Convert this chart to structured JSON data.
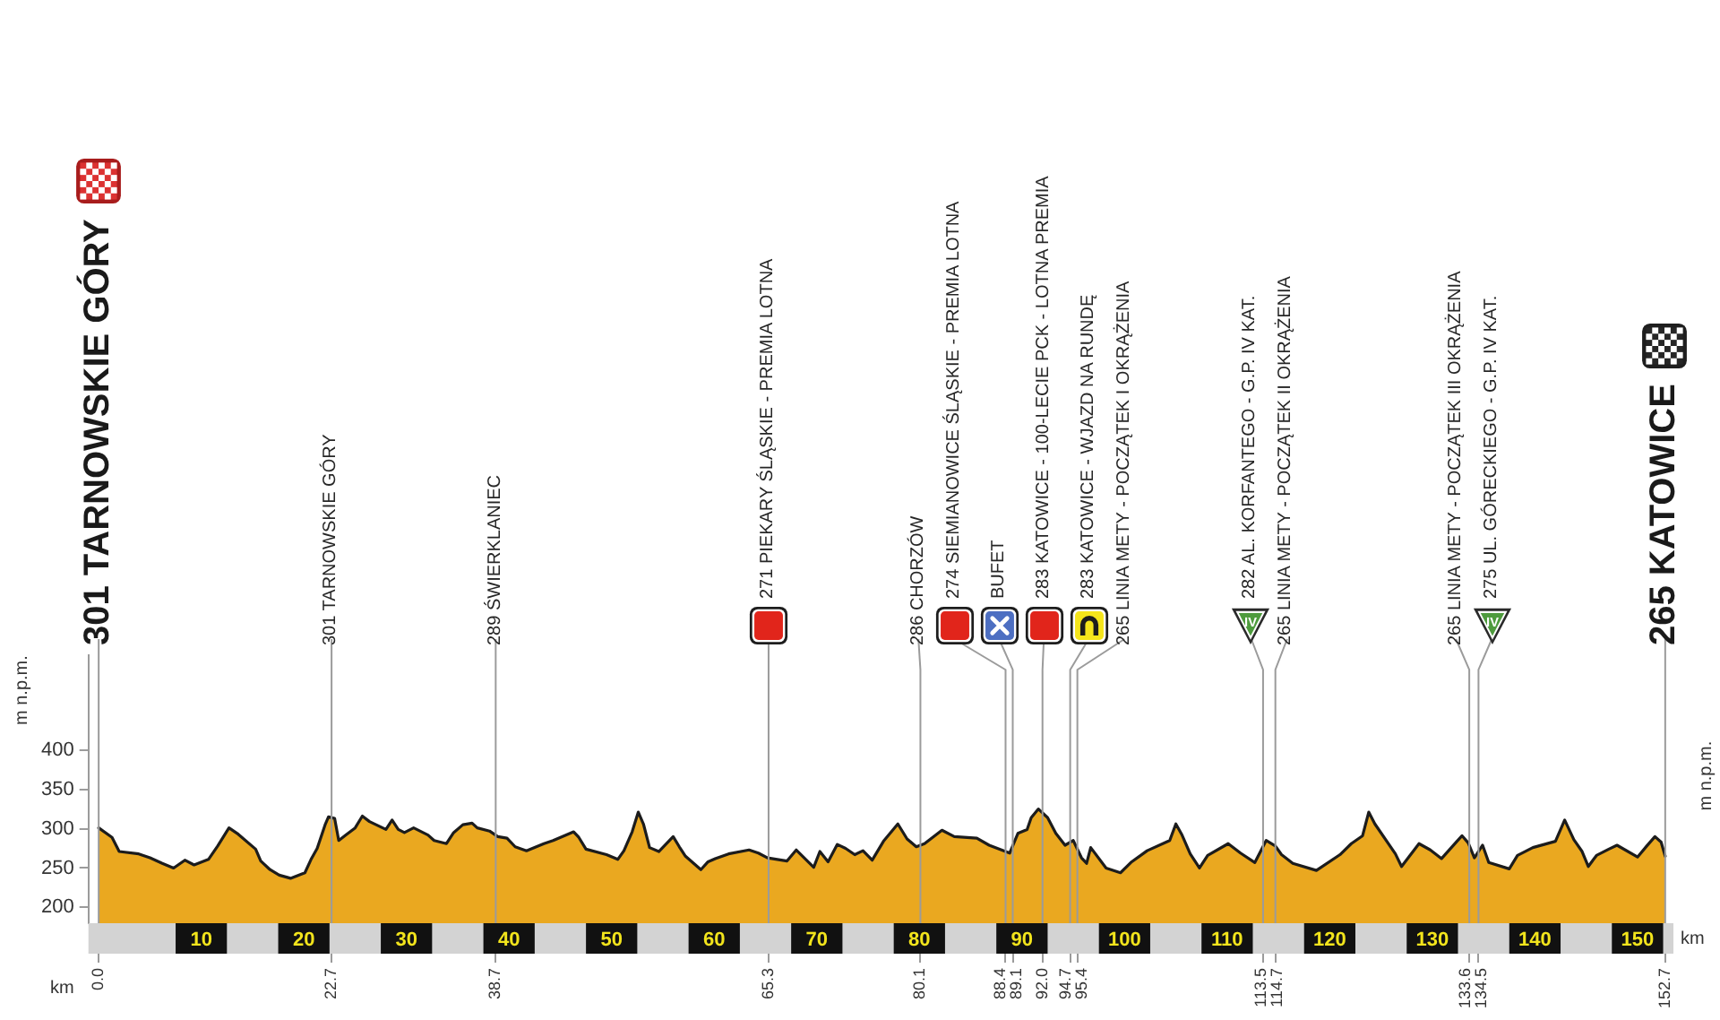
{
  "chart_data": {
    "type": "area",
    "xlabel": "km",
    "ylabel": "m n.p.m.",
    "x2label": "km",
    "annotations": [
      "m n.p.m.",
      "IV",
      "IV"
    ],
    "x": [
      0,
      1.3,
      2.0,
      3.9,
      5.0,
      6.2,
      7.3,
      8.4,
      9.3,
      10.7,
      11.6,
      12.7,
      13.6,
      15.3,
      15.8,
      16.7,
      17.6,
      18.7,
      20.1,
      20.7,
      21.3,
      22.1,
      22.4,
      23.0,
      23.4,
      24.1,
      25.0,
      25.7,
      26.4,
      28.0,
      28.6,
      29.2,
      29.8,
      30.7,
      32.1,
      32.7,
      33.9,
      34.6,
      35.5,
      36.4,
      36.9,
      38.1,
      38.9,
      39.8,
      40.6,
      41.7,
      43.4,
      44.3,
      46.3,
      46.8,
      47.5,
      49.5,
      50.6,
      51.2,
      52.0,
      52.6,
      53.1,
      53.7,
      54.6,
      56.0,
      56.6,
      57.2,
      58.7,
      59.4,
      60.1,
      61.4,
      63.4,
      64.3,
      65.2,
      67.1,
      68.0,
      69.7,
      70.3,
      71.1,
      72.0,
      72.8,
      73.7,
      74.5,
      75.4,
      76.5,
      77.9,
      78.8,
      79.7,
      80.5,
      82.2,
      83.4,
      85.6,
      86.8,
      88.8,
      89.6,
      90.5,
      90.9,
      91.6,
      92.5,
      93.3,
      94.2,
      95.0,
      95.8,
      96.3,
      96.7,
      98.2,
      99.6,
      100.7,
      102.2,
      104.4,
      105.0,
      105.6,
      106.4,
      107.3,
      108.1,
      110.1,
      111.3,
      112.7,
      113.8,
      114.7,
      115.3,
      116.4,
      118.7,
      121.0,
      122.1,
      123.2,
      123.8,
      124.4,
      126.4,
      127.0,
      128.7,
      129.8,
      130.9,
      132.4,
      132.9,
      133.5,
      134.1,
      134.9,
      135.5,
      137.5,
      138.3,
      139.8,
      142.0,
      142.9,
      143.8,
      144.6,
      145.2,
      146.0,
      147.2,
      148.0,
      150.0,
      150.9,
      151.7,
      152.3,
      152.7
    ],
    "color": "#eaa820",
    "values": [
      301,
      289,
      271,
      268,
      263,
      256,
      250,
      260,
      254,
      261,
      278,
      301,
      293,
      274,
      259,
      248,
      241,
      237,
      244,
      261,
      275,
      306,
      315,
      313,
      285,
      292,
      301,
      316,
      309,
      299,
      311,
      299,
      295,
      301,
      292,
      285,
      281,
      295,
      305,
      307,
      301,
      297,
      290,
      288,
      277,
      272,
      281,
      285,
      296,
      289,
      274,
      267,
      261,
      272,
      296,
      321,
      306,
      276,
      271,
      290,
      277,
      265,
      248,
      258,
      262,
      268,
      273,
      269,
      263,
      259,
      273,
      251,
      271,
      258,
      280,
      275,
      267,
      272,
      260,
      284,
      306,
      287,
      277,
      281,
      298,
      290,
      288,
      279,
      269,
      294,
      299,
      314,
      325,
      314,
      294,
      279,
      285,
      263,
      256,
      276,
      250,
      244,
      258,
      272,
      285,
      306,
      292,
      268,
      250,
      266,
      281,
      269,
      257,
      285,
      278,
      267,
      256,
      247,
      267,
      281,
      291,
      321,
      306,
      268,
      252,
      281,
      273,
      262,
      284,
      291,
      282,
      263,
      279,
      257,
      249,
      266,
      276,
      284,
      311,
      286,
      271,
      252,
      266,
      274,
      279,
      264,
      278,
      290,
      283,
      265
    ],
    "xlim": [
      -1,
      153.5
    ],
    "xticks": [
      {
        "value": 0,
        "label": "0.0"
      },
      22.7,
      38.7,
      65.3,
      80.1,
      88.4,
      89.1,
      {
        "value": 92,
        "label": "92.0"
      },
      94.7,
      95.4,
      113.5,
      114.7,
      133.6,
      134.5,
      152.7
    ],
    "x2lim": [
      -1,
      153.5
    ],
    "x2ticks": [
      10,
      20,
      30,
      40,
      50,
      60,
      70,
      80,
      90,
      100,
      110,
      120,
      130,
      140,
      150
    ],
    "ylim": [
      180,
      520
    ],
    "yticks": [
      200,
      250,
      300,
      350,
      400
    ],
    "ref_lines": [
      {
        "axis": "x",
        "value": 0,
        "label": "301 TARNOWSKIE GÓRY"
      },
      {
        "axis": "x",
        "value": 22.7,
        "label": "301 TARNOWSKIE GÓRY"
      },
      {
        "axis": "x",
        "value": 38.7,
        "label": "289 ŚWIERKLANIEC"
      },
      {
        "axis": "x",
        "value": 65.3,
        "label": "271 PIEKARY ŚLĄSKIE - PREMIA LOTNA"
      },
      {
        "axis": "x",
        "value": 80.1,
        "label": "286 CHORZÓW"
      },
      {
        "axis": "x",
        "value": 88.4,
        "label": "274 SIEMIANOWICE ŚLĄSKIE - PREMIA LOTNA"
      },
      {
        "axis": "x",
        "value": 89.1,
        "label": "BUFET"
      },
      {
        "axis": "x",
        "value": 92,
        "label": "283 KATOWICE - 100-LECIE PCK - LOTNA PREMIA"
      },
      {
        "axis": "x",
        "value": 94.7,
        "label": "283 KATOWICE - WJAZD NA RUNDĘ"
      },
      {
        "axis": "x",
        "value": 95.4,
        "label": "265 LINIA METY - POCZĄTEK I OKRĄŻENIA"
      },
      {
        "axis": "x",
        "value": 113.5,
        "label": "282 AL. KORFANTEGO - G.P. IV KAT."
      },
      {
        "axis": "x",
        "value": 114.7,
        "label": "265 LINIA METY - POCZĄTEK II OKRĄŻENIA"
      },
      {
        "axis": "x",
        "value": 133.6,
        "label": "265 LINIA METY - POCZĄTEK III OKRĄŻENIA"
      },
      {
        "axis": "x",
        "value": 134.5,
        "label": "275 UL. GÓRECKIEGO - G.P. IV KAT."
      },
      {
        "axis": "x",
        "value": 152.7,
        "label": "265 KATOWICE"
      }
    ]
  }
}
